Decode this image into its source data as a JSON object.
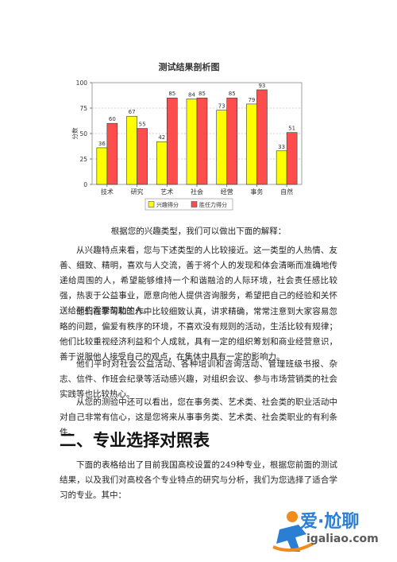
{
  "chart_data": {
    "type": "bar",
    "title": "测试结果剖析图",
    "ylabel": "分数",
    "xlabel": "",
    "ylim": [
      0,
      100
    ],
    "yticks": [
      0,
      25,
      50,
      75,
      100
    ],
    "grid": true,
    "legend_position": "bottom",
    "categories": [
      "技术",
      "研究",
      "艺术",
      "社会",
      "经营",
      "事务",
      "自然"
    ],
    "series": [
      {
        "name": "兴趣得分",
        "color": "#ffff00",
        "values": [
          36,
          67,
          42,
          84,
          73,
          79,
          33
        ]
      },
      {
        "name": "胜任力得分",
        "color": "#ff4d4d",
        "values": [
          60,
          55,
          85,
          85,
          85,
          93,
          51
        ]
      }
    ]
  },
  "intro": "根据您的兴趣类型，我们可以做出下面的解释：",
  "paragraphs": [
    "从兴趣特点来看，您与下述类型的人比较接近。这一类型的人热情、友善、细致、精明，喜欢与人交流，善于将个人的发现和体会清晰而准确地传递给周围的人，希望能够维持一个和谐融洽的人际环境，社会责任感比较强，热衷于公益事业，愿意向他人提供咨询服务，希望把自己的经验和关怀送给那些需要帮助的人。",
    "他们在学习和工作中比较细致认真，讲求精确，常常注意到大家容易忽略的问题，偏爱有秩序的环境，不喜欢没有规则的活动，生活比较有规律；他们比较重视经济利益和个人成就，具有一定的组织筹划和商业经营意识，善于说服他人接受自己的观点，在集体中具有一定的影响力。",
    "他们平时对社会公益活动、各种培训和咨询活动、管理班级书报、杂志、信件、作班会纪录等活动感兴趣，对组织会议、参与市场营销类的社会实践等也比较热心。",
    "从您的测验中还可以看出，您在事务类、艺术类、社会类的职业活动中对自己非常有信心，这是您将来从事事务类、艺术类、社会类职业的有利条件。"
  ],
  "heading": "二、专业选择对照表",
  "after_heading": "下面的表格给出了目前我国高校设置的249种专业，根据您前面的测试结果，以及我们对高校各个专业特点的研究与分析，我们为您选择了适合学习的专业。其中：",
  "logo": {
    "name": "爱·尬聊",
    "url": "igaliao.com",
    "color": "#2a7fd4",
    "accent": "#f08c1e"
  }
}
